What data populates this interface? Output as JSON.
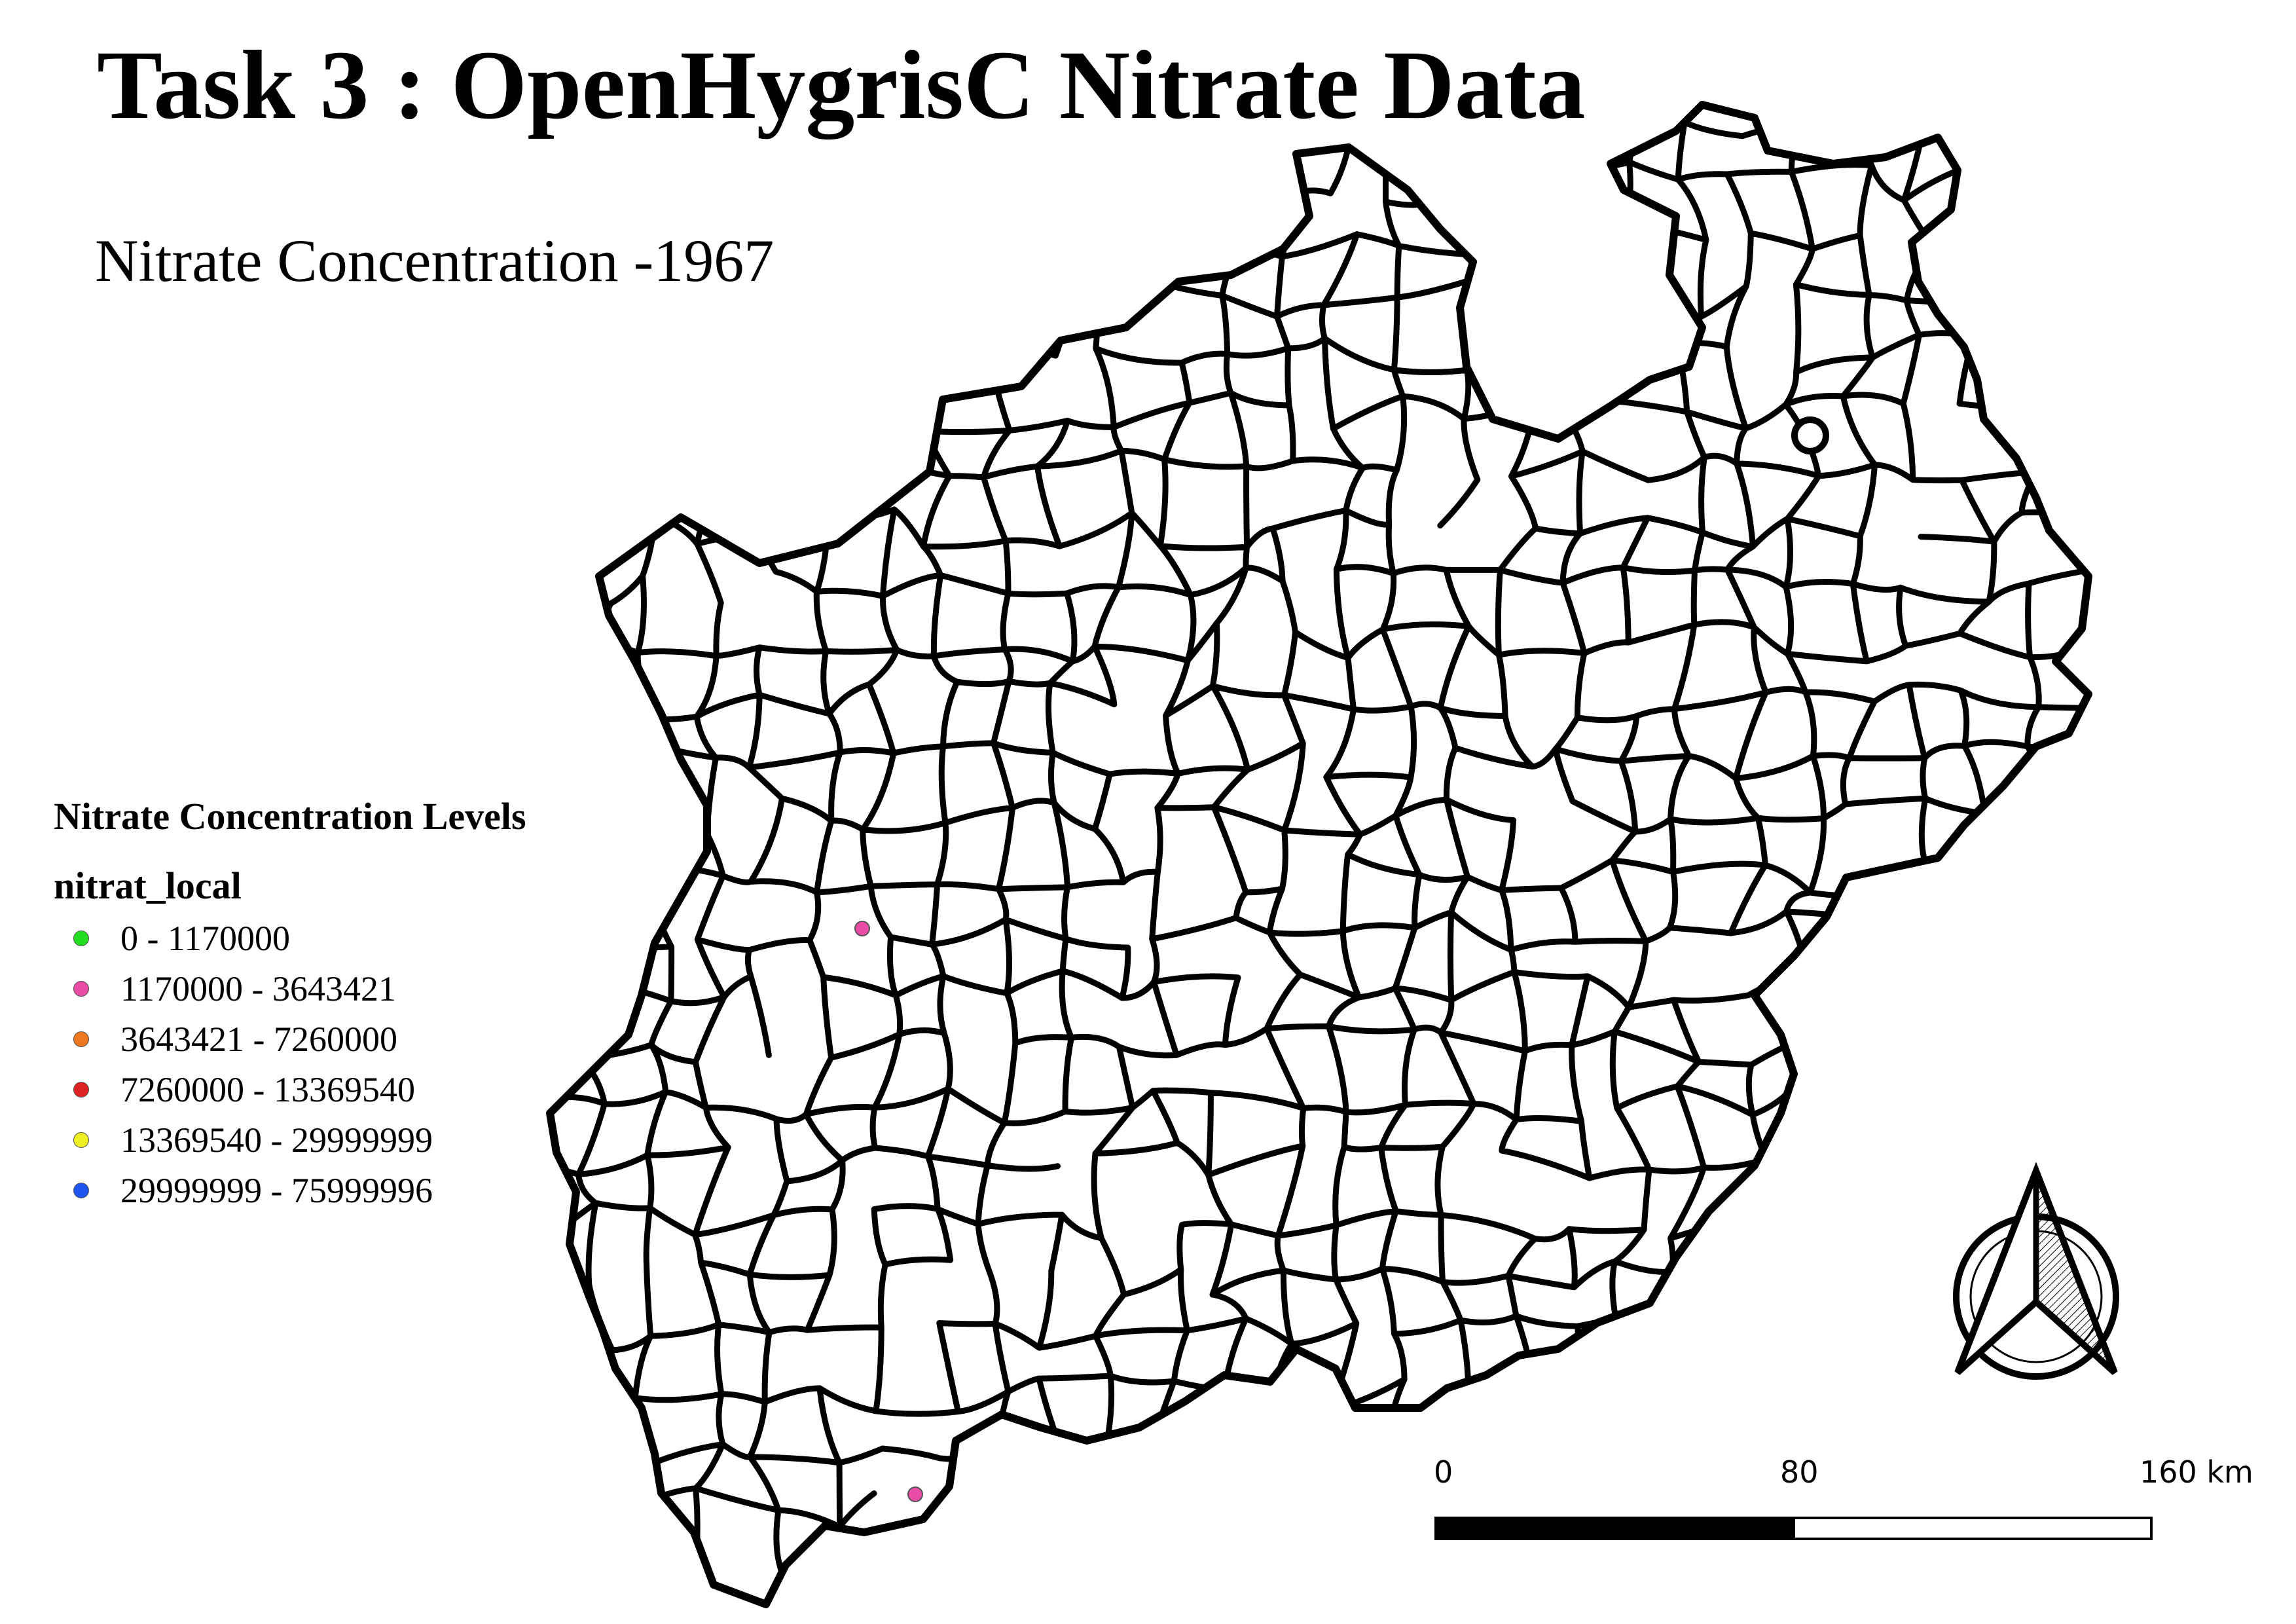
{
  "title": "Task 3 : OpenHygrisC Nitrate Data",
  "subtitle": "Nitrate Concentration -1967",
  "legend": {
    "heading": "Nitrate Concentration Levels",
    "field": "nitrat_local",
    "items": [
      {
        "label": "0 - 1170000",
        "color": "#22dd22"
      },
      {
        "label": "1170000 - 3643421",
        "color": "#e84ca6"
      },
      {
        "label": "3643421 - 7260000",
        "color": "#ee7722"
      },
      {
        "label": "7260000 - 13369540",
        "color": "#dd2222"
      },
      {
        "label": "13369540 - 29999999",
        "color": "#eeee22"
      },
      {
        "label": "29999999 - 75999996",
        "color": "#1f55ee"
      }
    ]
  },
  "scalebar": {
    "labels": [
      "0",
      "80",
      "160 km"
    ]
  },
  "map": {
    "region_fill": "#ffffff",
    "boundary_color": "#000000",
    "sample_points": [
      {
        "class": "1170000 - 3643421",
        "color": "#e84ca6"
      },
      {
        "class": "1170000 - 3643421",
        "color": "#e84ca6"
      }
    ]
  },
  "north_arrow": {
    "icon": "north-arrow-icon"
  }
}
